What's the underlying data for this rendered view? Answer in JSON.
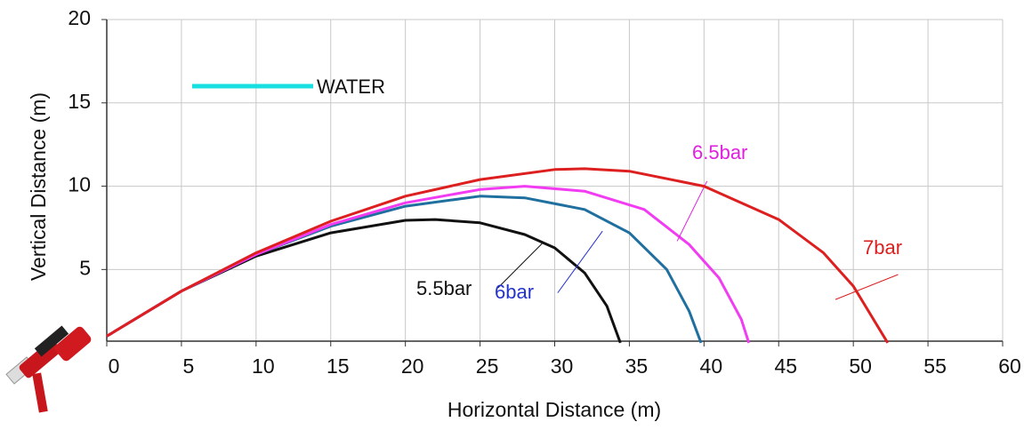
{
  "chart_data": {
    "type": "line",
    "xlabel": "Horizontal Distance (m)",
    "ylabel": "Vertical Distance (m)",
    "xlim": [
      0,
      60
    ],
    "ylim": [
      0.7,
      20
    ],
    "xticks": [
      0,
      5,
      10,
      15,
      20,
      25,
      30,
      35,
      40,
      45,
      50,
      55,
      60
    ],
    "yticks": [
      5,
      10,
      15,
      20
    ],
    "grid": true,
    "legend": {
      "label": "WATER",
      "color": "#19e0e0",
      "position": "upper left"
    },
    "series": [
      {
        "name": "5.5bar",
        "color": "#111111",
        "label_color": "#111111",
        "x": [
          0,
          5,
          10,
          15,
          20,
          22,
          25,
          28,
          30,
          32,
          33.5,
          34.4
        ],
        "values": [
          1,
          3.7,
          5.8,
          7.2,
          7.95,
          8.0,
          7.8,
          7.1,
          6.3,
          4.8,
          2.8,
          0.6
        ]
      },
      {
        "name": "6bar",
        "color": "#1f6f9f",
        "label_color": "#2433cc",
        "x": [
          0,
          5,
          10,
          15,
          20,
          25,
          28,
          32,
          35,
          37.5,
          39,
          39.8
        ],
        "values": [
          1,
          3.7,
          5.9,
          7.6,
          8.8,
          9.4,
          9.3,
          8.6,
          7.2,
          5.0,
          2.5,
          0.6
        ]
      },
      {
        "name": "6.5bar",
        "color": "#f23cf2",
        "label_color": "#e020e0",
        "x": [
          0,
          5,
          10,
          15,
          20,
          25,
          28,
          32,
          36,
          39,
          41,
          42.5,
          43
        ],
        "values": [
          1,
          3.7,
          5.9,
          7.7,
          9.0,
          9.8,
          10.0,
          9.7,
          8.6,
          6.5,
          4.5,
          2.0,
          0.6
        ]
      },
      {
        "name": "7bar",
        "color": "#dd1f1f",
        "label_color": "#dd1f1f",
        "x": [
          0,
          5,
          10,
          15,
          20,
          25,
          30,
          32,
          35,
          40,
          45,
          48,
          50,
          52.3
        ],
        "values": [
          1,
          3.7,
          6.0,
          7.9,
          9.4,
          10.4,
          11.0,
          11.05,
          10.9,
          10.0,
          8.0,
          6.0,
          4.0,
          0.6
        ]
      }
    ]
  }
}
